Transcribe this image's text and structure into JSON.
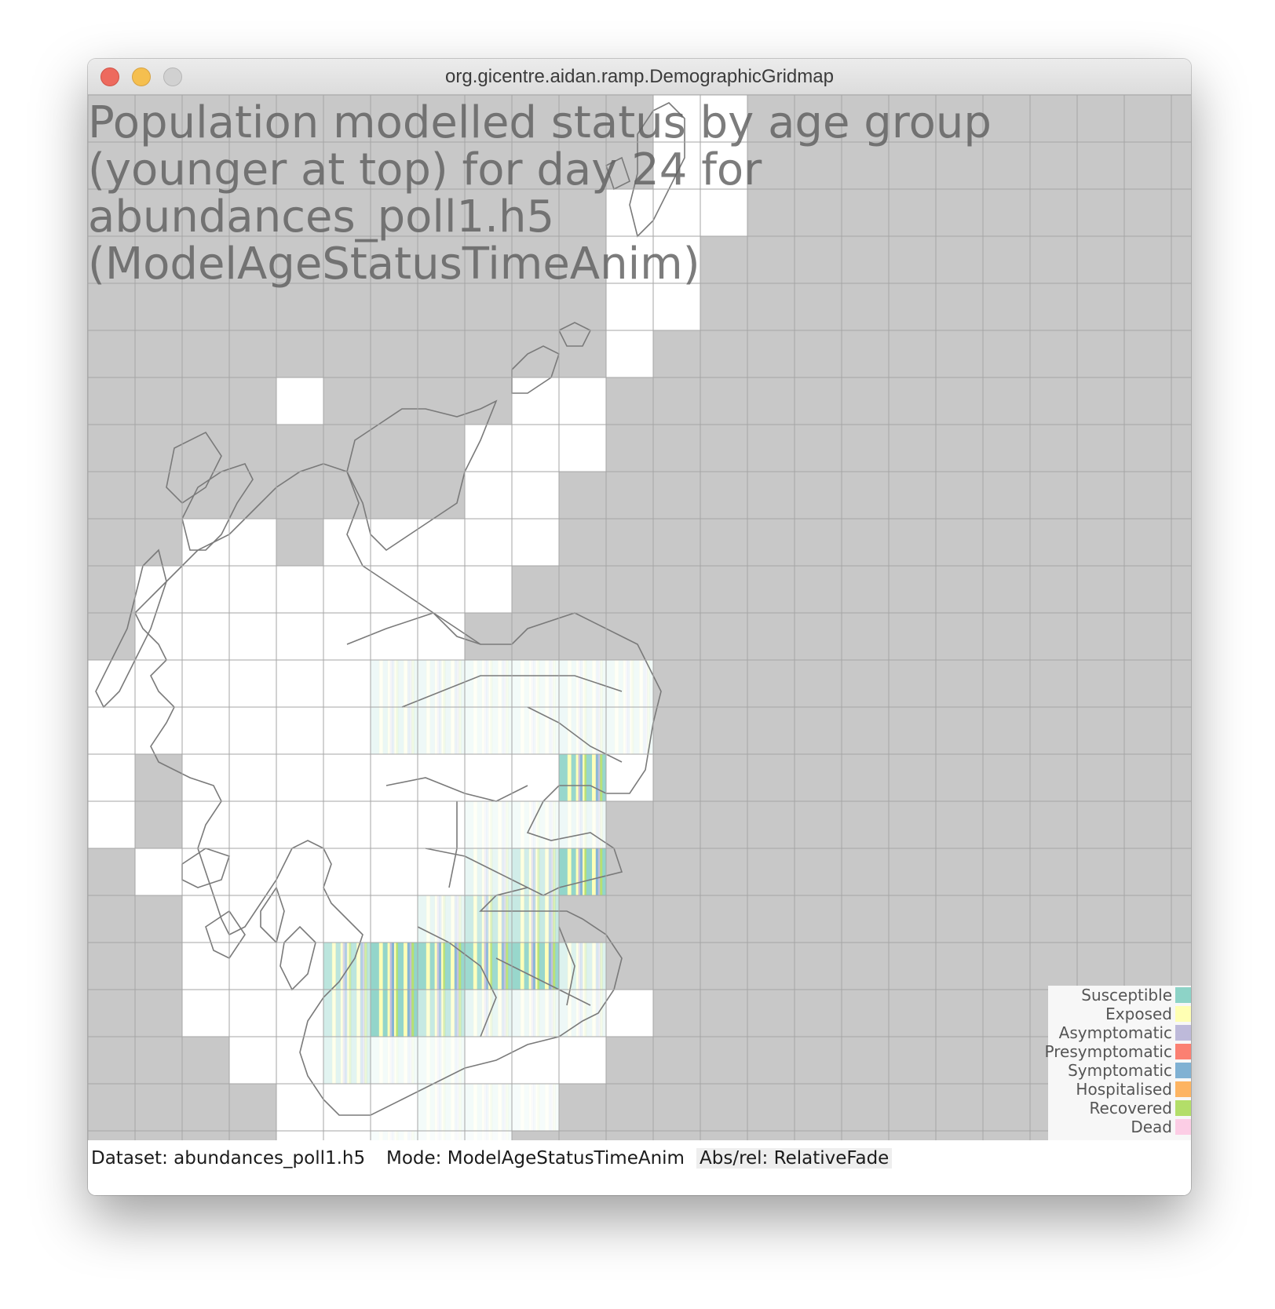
{
  "window": {
    "title": "org.gicentre.aidan.ramp.DemographicGridmap"
  },
  "map": {
    "title_lines": [
      "Population modelled status by age group",
      "(younger at top) for day 24 for",
      "abundances_poll1.h5",
      "(ModelAgeStatusTimeAnim)"
    ],
    "background_color": "#c8c8c8",
    "land_cell_color": "#ffffff",
    "grid_line_color": "#a6a6a6",
    "outline_color": "#7a7a7a"
  },
  "legend": {
    "items": [
      {
        "label": "Susceptible",
        "color": "#8dd3c7"
      },
      {
        "label": "Exposed",
        "color": "#ffffb3"
      },
      {
        "label": "Asymptomatic",
        "color": "#bebada"
      },
      {
        "label": "Presymptomatic",
        "color": "#fb8072"
      },
      {
        "label": "Symptomatic",
        "color": "#80b1d3"
      },
      {
        "label": "Hospitalised",
        "color": "#fdb462"
      },
      {
        "label": "Recovered",
        "color": "#b3de69"
      },
      {
        "label": "Dead",
        "color": "#fccde5"
      }
    ]
  },
  "status": {
    "dataset": "Dataset: abundances_poll1.h5",
    "mode": "Mode: ModelAgeStatusTimeAnim",
    "absrel": "Abs/rel: RelativeFade"
  }
}
